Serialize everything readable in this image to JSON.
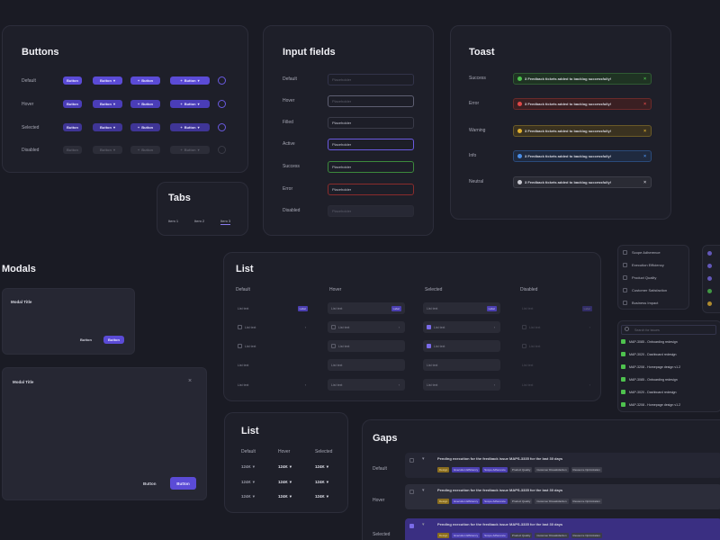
{
  "buttons": {
    "title": "Buttons",
    "rows": [
      "Default",
      "Hover",
      "Selected",
      "Disabled"
    ],
    "label": "Button"
  },
  "inputs": {
    "title": "Input fields",
    "rows": [
      "Default",
      "Hover",
      "Filled",
      "Active",
      "Success",
      "Error",
      "Disabled"
    ],
    "placeholder": "Placeholder"
  },
  "toast": {
    "title": "Toast",
    "rows": [
      "Success",
      "Error",
      "Warning",
      "Info",
      "Neutral"
    ],
    "message": "3 Feedback tickets added to backlog successfully!",
    "colors": {
      "success": "#4ec24e",
      "error": "#e04848",
      "warning": "#e0b030",
      "info": "#4a8ee8",
      "neutral": "#c8c8d0"
    }
  },
  "tabs": {
    "title": "Tabs",
    "items": [
      "Item 1",
      "Item 2",
      "Item 3"
    ]
  },
  "modals": {
    "title": "Modals",
    "small": {
      "title": "Modal Title",
      "secondary": "Button",
      "primary": "Button"
    },
    "large": {
      "title": "Modal Title",
      "secondary": "Button",
      "primary": "Button"
    }
  },
  "list": {
    "title": "List",
    "columns": [
      "Default",
      "Hover",
      "Selected",
      "Disabled"
    ],
    "item": "List text",
    "badge": "Label"
  },
  "list2": {
    "title": "List",
    "columns": [
      "Default",
      "Hover",
      "Selected"
    ],
    "value": "124K"
  },
  "checklist": [
    "Scope Adherence",
    "Execution Efficiency",
    "Product Quality",
    "Customer Satisfaction",
    "Business Impact"
  ],
  "issues": {
    "search": "Search for issues",
    "items": [
      "MAP-3085 - Onboarding redesign",
      "MAP-3020 - Dashboard redesign",
      "MAP-3208 - Homepage design v1.2",
      "MAP-3085 - Onboarding redesign",
      "MAP-3020 - Dashboard redesign",
      "MAP-3208 - Homepage design v1.2"
    ]
  },
  "gaps": {
    "title": "Gaps",
    "rows": [
      "Default",
      "Hover",
      "Selected"
    ],
    "text": "Pending execution for the feedback issue MAPS-3335 for the last 30 days",
    "tags": [
      "Design",
      "Execution Efficiency",
      "Scope Adherence",
      "Product Quality",
      "Customer Dissatisfaction",
      "Resource Optimization"
    ]
  }
}
